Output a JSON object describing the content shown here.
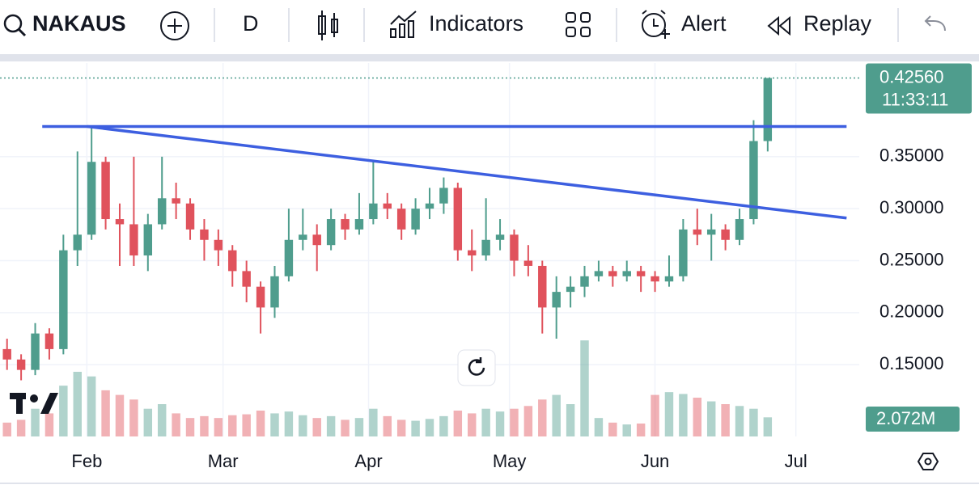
{
  "toolbar": {
    "symbol": "NAKAUS",
    "interval": "D",
    "indicators": "Indicators",
    "alert": "Alert",
    "replay": "Replay"
  },
  "chart_data": {
    "type": "candlestick",
    "x": [
      15,
      18,
      21,
      24,
      27,
      30,
      33,
      36,
      39,
      42,
      45,
      48,
      51,
      54,
      57,
      60,
      63,
      66,
      69,
      72,
      75,
      78,
      81,
      84,
      87,
      90,
      93,
      96,
      99,
      102,
      105,
      108,
      111,
      114,
      117,
      120,
      123,
      126,
      129,
      132,
      135,
      138,
      141,
      144,
      147,
      150,
      153,
      156,
      159,
      162,
      165,
      168,
      171,
      174,
      177
    ],
    "open": [
      0.165,
      0.155,
      0.145,
      0.18,
      0.165,
      0.26,
      0.275,
      0.345,
      0.29,
      0.285,
      0.255,
      0.285,
      0.31,
      0.305,
      0.28,
      0.27,
      0.26,
      0.24,
      0.225,
      0.205,
      0.235,
      0.27,
      0.275,
      0.265,
      0.29,
      0.28,
      0.29,
      0.305,
      0.3,
      0.28,
      0.3,
      0.305,
      0.32,
      0.26,
      0.255,
      0.27,
      0.275,
      0.25,
      0.245,
      0.205,
      0.22,
      0.225,
      0.235,
      0.24,
      0.235,
      0.24,
      0.235,
      0.23,
      0.235,
      0.28,
      0.275,
      0.28,
      0.27,
      0.29,
      0.365
    ],
    "high": [
      0.175,
      0.16,
      0.19,
      0.185,
      0.275,
      0.355,
      0.38,
      0.35,
      0.305,
      0.35,
      0.295,
      0.35,
      0.325,
      0.31,
      0.29,
      0.28,
      0.265,
      0.25,
      0.23,
      0.245,
      0.3,
      0.3,
      0.285,
      0.3,
      0.295,
      0.315,
      0.345,
      0.315,
      0.305,
      0.31,
      0.32,
      0.33,
      0.325,
      0.28,
      0.31,
      0.29,
      0.28,
      0.265,
      0.25,
      0.235,
      0.235,
      0.245,
      0.25,
      0.245,
      0.25,
      0.245,
      0.24,
      0.255,
      0.29,
      0.3,
      0.295,
      0.285,
      0.3,
      0.385,
      0.4256
    ],
    "low": [
      0.145,
      0.135,
      0.14,
      0.155,
      0.16,
      0.245,
      0.27,
      0.28,
      0.245,
      0.245,
      0.24,
      0.28,
      0.29,
      0.27,
      0.25,
      0.245,
      0.225,
      0.21,
      0.18,
      0.195,
      0.23,
      0.26,
      0.24,
      0.26,
      0.27,
      0.275,
      0.285,
      0.29,
      0.27,
      0.275,
      0.29,
      0.295,
      0.25,
      0.24,
      0.25,
      0.26,
      0.235,
      0.235,
      0.18,
      0.175,
      0.205,
      0.215,
      0.23,
      0.225,
      0.23,
      0.22,
      0.22,
      0.225,
      0.23,
      0.265,
      0.25,
      0.26,
      0.265,
      0.285,
      0.355
    ],
    "close": [
      0.155,
      0.145,
      0.18,
      0.165,
      0.26,
      0.275,
      0.345,
      0.29,
      0.285,
      0.255,
      0.285,
      0.31,
      0.305,
      0.28,
      0.27,
      0.26,
      0.24,
      0.225,
      0.205,
      0.235,
      0.27,
      0.275,
      0.265,
      0.29,
      0.28,
      0.29,
      0.305,
      0.3,
      0.28,
      0.3,
      0.305,
      0.32,
      0.26,
      0.255,
      0.27,
      0.275,
      0.25,
      0.245,
      0.205,
      0.22,
      0.225,
      0.235,
      0.24,
      0.235,
      0.24,
      0.235,
      0.23,
      0.235,
      0.28,
      0.275,
      0.28,
      0.27,
      0.29,
      0.365,
      0.4256
    ],
    "volume": [
      1500000,
      1800000,
      3000000,
      2500000,
      5500000,
      7000000,
      6500000,
      5000000,
      4500000,
      4000000,
      3000000,
      3500000,
      2500000,
      2000000,
      2200000,
      2000000,
      2300000,
      2400000,
      2800000,
      2500000,
      2700000,
      2300000,
      2000000,
      2200000,
      1800000,
      2000000,
      3000000,
      2200000,
      1800000,
      1700000,
      1900000,
      2200000,
      2800000,
      2500000,
      3000000,
      2700000,
      3000000,
      3300000,
      4000000,
      4500000,
      3500000,
      10400000,
      2000000,
      1500000,
      1300000,
      1400000,
      4500000,
      4800000,
      4600000,
      4200000,
      3800000,
      3500000,
      3300000,
      3000000,
      2072000
    ],
    "last_close_label": "0.42560",
    "countdown": "11:33:11",
    "last_volume_label": "2.072M",
    "up_color": "#4f9d8d",
    "down_color": "#e0525c",
    "ylim": [
      0.081,
      0.44
    ],
    "yticks": [
      {
        "value": 0.15,
        "label": "0.15000"
      },
      {
        "value": 0.2,
        "label": "0.20000"
      },
      {
        "value": 0.25,
        "label": "0.25000"
      },
      {
        "value": 0.3,
        "label": "0.30000"
      },
      {
        "value": 0.35,
        "label": "0.35000"
      }
    ],
    "xlim": [
      13.5,
      196.5
    ],
    "xticks": [
      {
        "value": 32,
        "label": "Feb"
      },
      {
        "value": 61,
        "label": "Mar"
      },
      {
        "value": 92,
        "label": "Apr"
      },
      {
        "value": 122,
        "label": "May"
      },
      {
        "value": 153,
        "label": "Jun"
      },
      {
        "value": 183,
        "label": "Jul"
      }
    ],
    "vlim": [
      0,
      14000000
    ],
    "grid": true,
    "trendlines": [
      {
        "x": [
          22.5,
          193.8
        ],
        "y": [
          0.379,
          0.379
        ],
        "color": "#3d5fe0"
      },
      {
        "x": [
          32.1,
          193.8
        ],
        "y": [
          0.379,
          0.291
        ],
        "color": "#3d5fe0"
      }
    ]
  }
}
